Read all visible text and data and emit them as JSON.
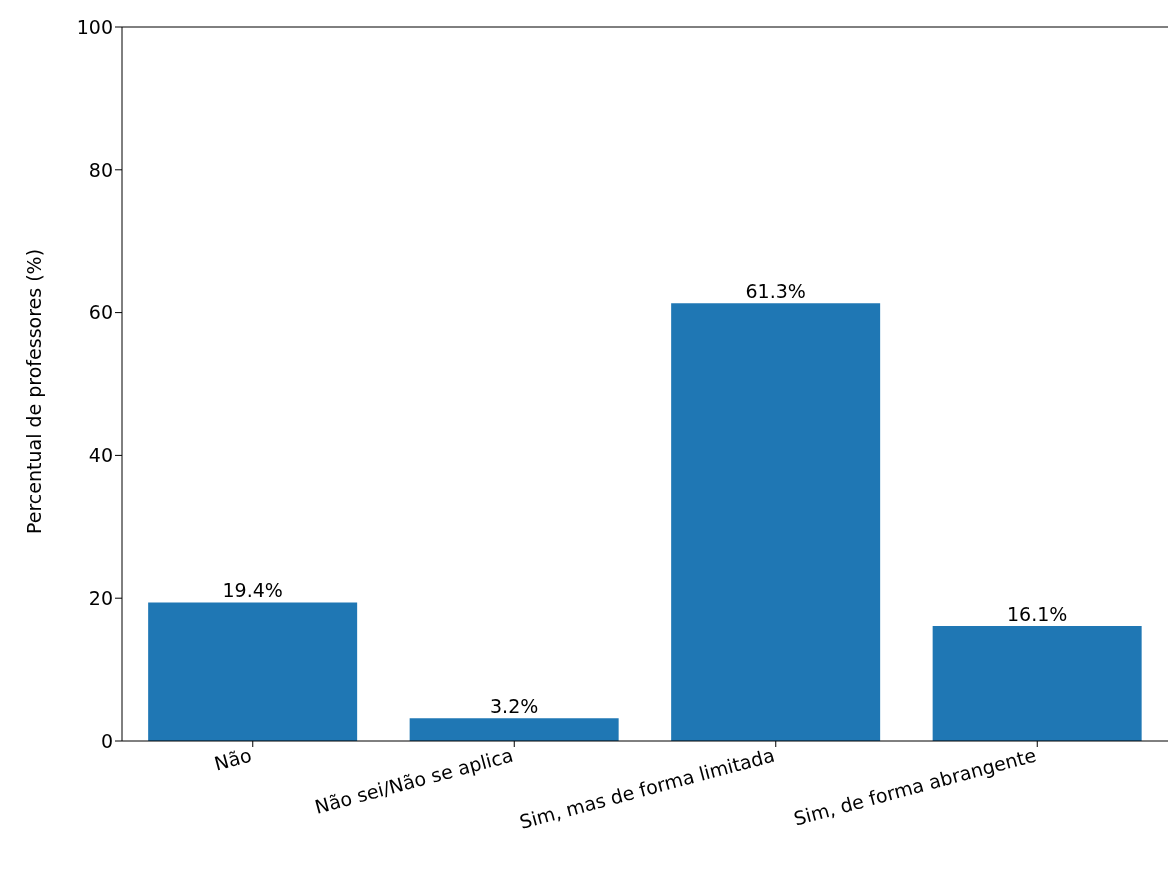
{
  "chart_data": {
    "type": "bar",
    "categories": [
      "Não",
      "Não sei/Não se aplica",
      "Sim, mas de forma limitada",
      "Sim, de forma abrangente"
    ],
    "values": [
      19.4,
      3.2,
      61.3,
      16.1
    ],
    "value_labels": [
      "19.4%",
      "3.2%",
      "61.3%",
      "16.1%"
    ],
    "color": "#1f77b4",
    "ylabel": "Percentual de professores (%)",
    "ylim": [
      0,
      100
    ],
    "yticks": [
      0,
      20,
      40,
      60,
      80,
      100
    ],
    "grid": false
  }
}
